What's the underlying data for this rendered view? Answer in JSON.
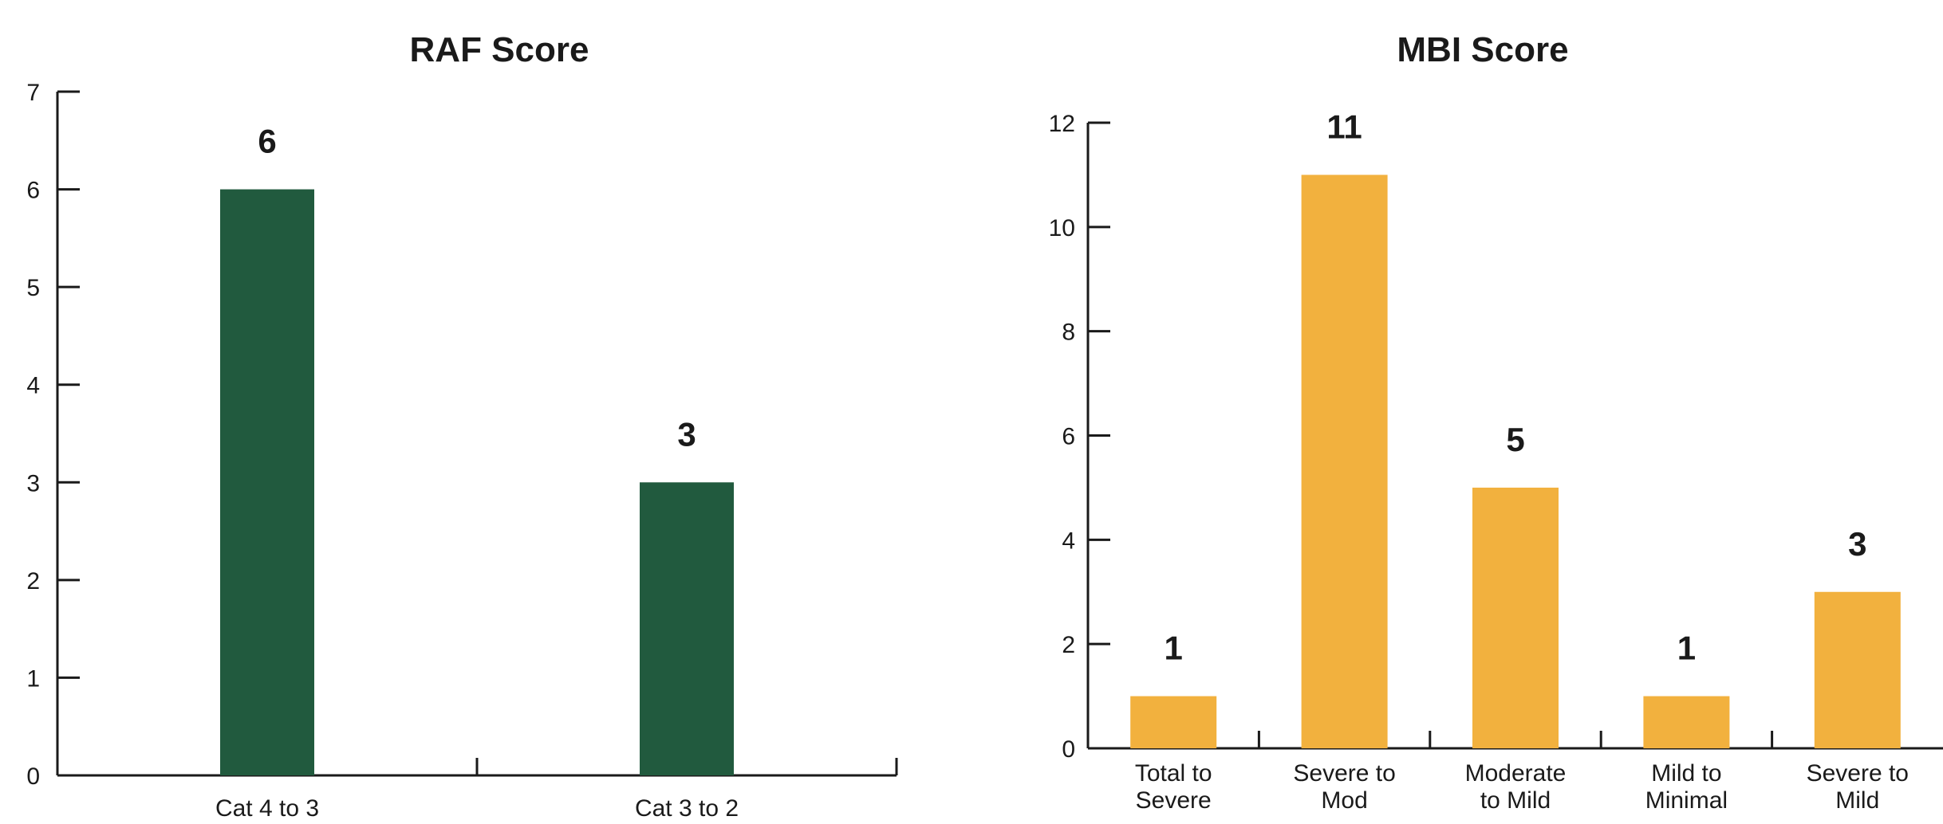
{
  "chart_data": [
    {
      "type": "bar",
      "title": "RAF Score",
      "xlabel": "",
      "ylabel": "",
      "categories": [
        "Cat 4 to 3",
        "Cat 3 to 2"
      ],
      "values": [
        6,
        3
      ],
      "ylim": [
        0,
        7
      ],
      "yticks": [
        0,
        1,
        2,
        3,
        4,
        5,
        6,
        7
      ],
      "grid": false,
      "colors": {
        "bar": "#215A3E"
      }
    },
    {
      "type": "bar",
      "title": "MBI Score",
      "xlabel": "",
      "ylabel": "",
      "categories": [
        [
          "Total to",
          "Severe"
        ],
        [
          "Severe to",
          "Mod"
        ],
        [
          "Moderate",
          "to Mild"
        ],
        [
          "Mild to",
          "Minimal"
        ],
        [
          "Severe to",
          "Mild"
        ]
      ],
      "values": [
        1,
        11,
        5,
        1,
        3
      ],
      "ylim": [
        0,
        12
      ],
      "yticks": [
        0,
        2,
        4,
        6,
        8,
        10,
        12
      ],
      "grid": false,
      "colors": {
        "bar": "#F2B13E"
      }
    }
  ]
}
